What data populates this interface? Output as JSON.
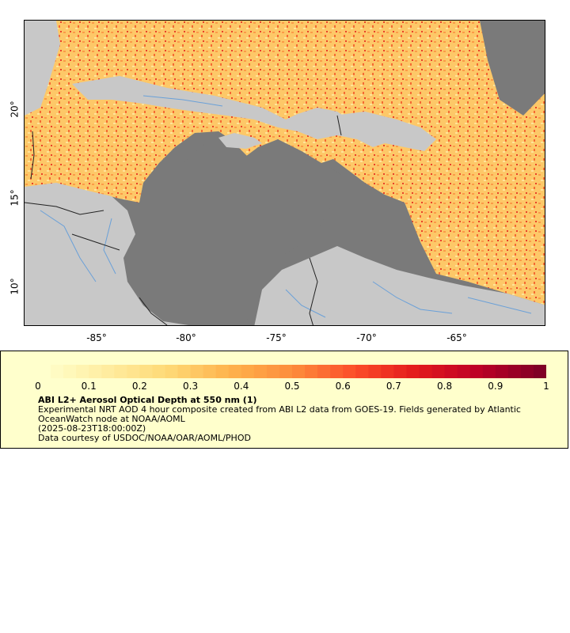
{
  "map": {
    "lon_ticks": [
      "-85°",
      "-80°",
      "-75°",
      "-70°",
      "-65°"
    ],
    "lat_ticks": [
      "20°",
      "15°",
      "10°"
    ],
    "colors": {
      "ocean_nodata": "#7a7a7a",
      "land": "#c8c8c8",
      "rivers": "#6aa0d8",
      "borders": "#222222"
    }
  },
  "legend": {
    "title": "ABI L2+ Aerosol Optical Depth at 550 nm (1)",
    "description": "Experimental NRT AOD 4 hour composite created from ABI L2 data from GOES-19. Fields generated by Atlantic OceanWatch node at NOAA/AOML",
    "timestamp": "(2025-08-23T18:00:00Z)",
    "credit": "Data courtesy of USDOC/NOAA/OAR/AOML/PHOD",
    "colorbar_ticks": [
      "0",
      "0.1",
      "0.2",
      "0.3",
      "0.4",
      "0.5",
      "0.6",
      "0.7",
      "0.8",
      "0.9",
      "1"
    ],
    "colorbar_colors": [
      "#ffffcc",
      "#ffeda0",
      "#fed976",
      "#feb24c",
      "#fd8d3c",
      "#fc4e2a",
      "#e31a1c",
      "#bd0026",
      "#800026"
    ]
  }
}
